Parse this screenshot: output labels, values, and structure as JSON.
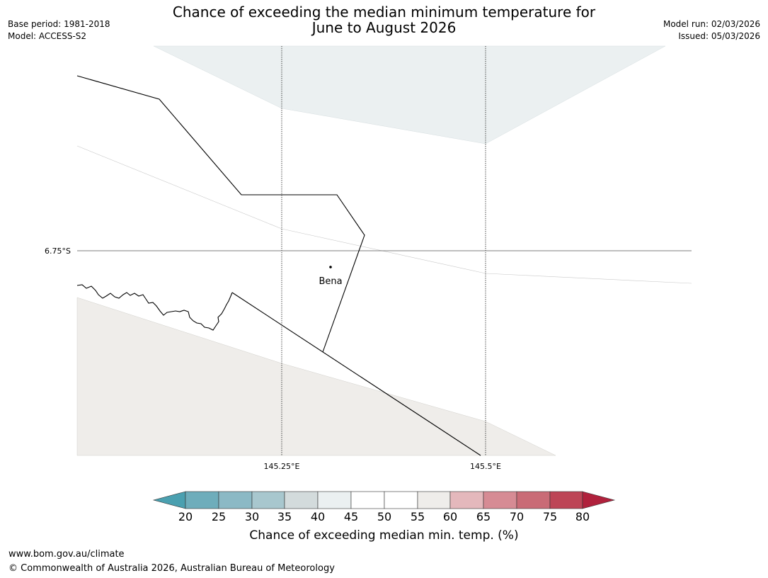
{
  "title": {
    "line1": "Chance of exceeding the median minimum temperature for",
    "line2": "June to August 2026"
  },
  "meta": {
    "base_period": "Base period: 1981-2018",
    "model": "Model: ACCESS-S2",
    "model_run": "Model run: 02/03/2026",
    "issued": "Issued: 05/03/2026"
  },
  "map": {
    "lat_label": "6.75°S",
    "lon_labels": [
      "145.25°E",
      "145.5°E"
    ],
    "place": "Bena"
  },
  "colorbar": {
    "title": "Chance of exceeding median min. temp. (%)",
    "ticks": [
      20,
      25,
      30,
      35,
      40,
      45,
      50,
      55,
      60,
      65,
      70,
      75,
      80
    ],
    "colors": {
      "below20": "#4aa0b0",
      "20-25": "#6eadbb",
      "25-30": "#8bb9c5",
      "30-35": "#a8c7ce",
      "35-40": "#d3dbdc",
      "40-45": "#ebf0f1",
      "45-50": "#ffffff",
      "50-55": "#ffffff",
      "55-60": "#efedea",
      "60-65": "#e4b8bc",
      "65-70": "#d68b94",
      "70-75": "#c96b76",
      "75-80": "#bd4556",
      "above80": "#b0213c"
    }
  },
  "footer": {
    "url": "www.bom.gov.au/climate",
    "copyright": "© Commonwealth of Australia 2026, Australian Bureau of Meteorology"
  }
}
